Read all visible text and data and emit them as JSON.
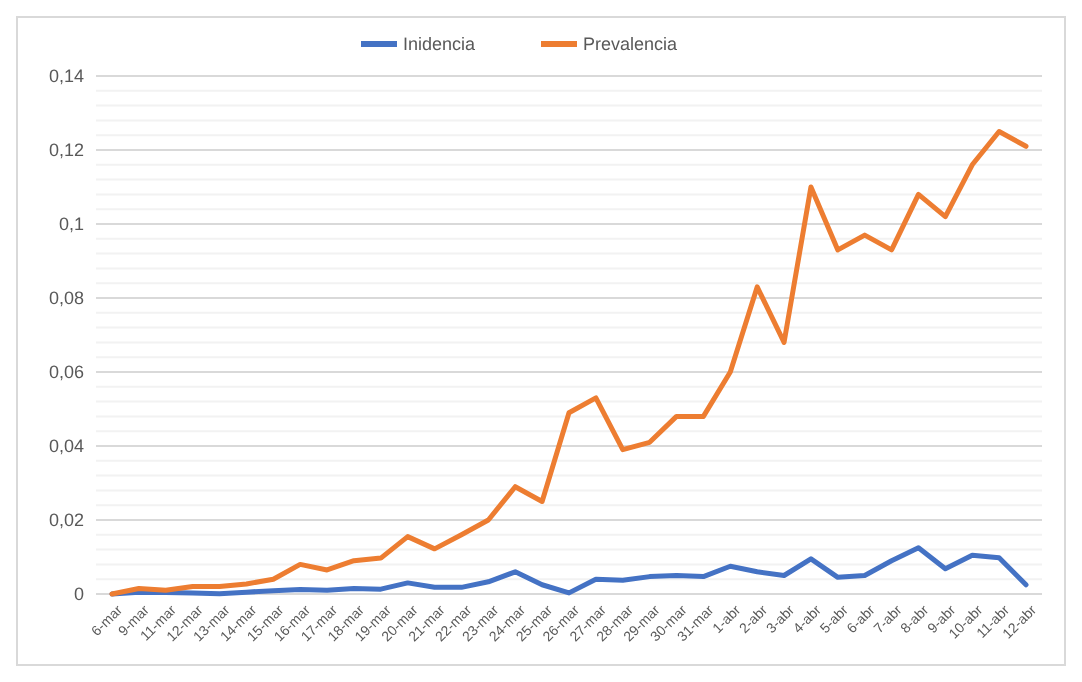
{
  "chart_data": {
    "type": "line",
    "categories": [
      "6-mar",
      "9-mar",
      "11-mar",
      "12-mar",
      "13-mar",
      "14-mar",
      "15-mar",
      "16-mar",
      "17-mar",
      "18-mar",
      "19-mar",
      "20-mar",
      "21-mar",
      "22-mar",
      "23-mar",
      "24-mar",
      "25-mar",
      "26-mar",
      "27-mar",
      "28-mar",
      "29-mar",
      "30-mar",
      "31-mar",
      "1-abr",
      "2-abr",
      "3-abr",
      "4-abr",
      "5-abr",
      "6-abr",
      "7-abr",
      "8-abr",
      "9-abr",
      "10-abr",
      "11-abr",
      "12-abr"
    ],
    "series": [
      {
        "name": "Inidencia",
        "color": "#4472c4",
        "values": [
          0,
          0.0005,
          0.0004,
          0.0003,
          0.0001,
          0.0005,
          0.0009,
          0.0012,
          0.001,
          0.0015,
          0.0013,
          0.003,
          0.0018,
          0.0018,
          0.0033,
          0.006,
          0.0025,
          0.0003,
          0.004,
          0.0037,
          0.0047,
          0.005,
          0.0047,
          0.0075,
          0.006,
          0.005,
          0.0095,
          0.0045,
          0.005,
          0.009,
          0.0125,
          0.0068,
          0.0105,
          0.0098,
          0.0025
        ]
      },
      {
        "name": "Prevalencia",
        "color": "#ed7d31",
        "values": [
          0,
          0.0015,
          0.001,
          0.002,
          0.002,
          0.0027,
          0.004,
          0.008,
          0.0065,
          0.009,
          0.0097,
          0.0155,
          0.0122,
          0.016,
          0.02,
          0.029,
          0.025,
          0.049,
          0.053,
          0.039,
          0.041,
          0.048,
          0.048,
          0.06,
          0.083,
          0.068,
          0.11,
          0.093,
          0.097,
          0.093,
          0.108,
          0.102,
          0.116,
          0.125,
          0.121
        ]
      }
    ],
    "ylim": [
      0,
      0.14
    ],
    "yticks": [
      {
        "value": 0,
        "label": "0"
      },
      {
        "value": 0.004,
        "label": null
      },
      {
        "value": 0.008,
        "label": null
      },
      {
        "value": 0.012,
        "label": null
      },
      {
        "value": 0.016,
        "label": null
      },
      {
        "value": 0.02,
        "label": "0,02"
      },
      {
        "value": 0.024,
        "label": null
      },
      {
        "value": 0.028,
        "label": null
      },
      {
        "value": 0.032,
        "label": null
      },
      {
        "value": 0.036,
        "label": null
      },
      {
        "value": 0.04,
        "label": "0,04"
      },
      {
        "value": 0.044,
        "label": null
      },
      {
        "value": 0.048,
        "label": null
      },
      {
        "value": 0.052,
        "label": null
      },
      {
        "value": 0.056,
        "label": null
      },
      {
        "value": 0.06,
        "label": "0,06"
      },
      {
        "value": 0.064,
        "label": null
      },
      {
        "value": 0.068,
        "label": null
      },
      {
        "value": 0.072,
        "label": null
      },
      {
        "value": 0.076,
        "label": null
      },
      {
        "value": 0.08,
        "label": "0,08"
      },
      {
        "value": 0.084,
        "label": null
      },
      {
        "value": 0.088,
        "label": null
      },
      {
        "value": 0.092,
        "label": null
      },
      {
        "value": 0.096,
        "label": null
      },
      {
        "value": 0.1,
        "label": "0,1"
      },
      {
        "value": 0.104,
        "label": null
      },
      {
        "value": 0.108,
        "label": null
      },
      {
        "value": 0.112,
        "label": null
      },
      {
        "value": 0.116,
        "label": null
      },
      {
        "value": 0.12,
        "label": "0,12"
      },
      {
        "value": 0.124,
        "label": null
      },
      {
        "value": 0.128,
        "label": null
      },
      {
        "value": 0.132,
        "label": null
      },
      {
        "value": 0.136,
        "label": null
      },
      {
        "value": 0.14,
        "label": "0,14"
      }
    ],
    "grid": "y",
    "legend": "top",
    "marker": "none",
    "line_style": "solid"
  }
}
